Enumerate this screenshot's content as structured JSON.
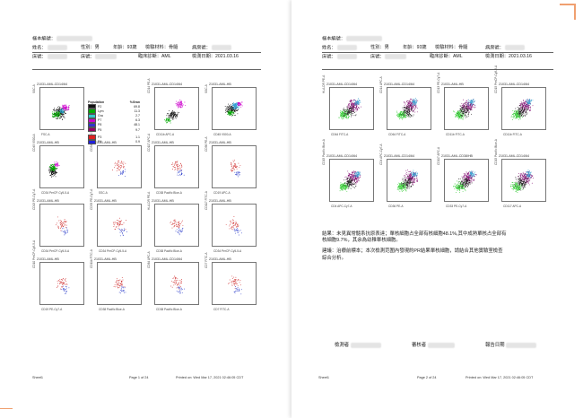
{
  "page1": {
    "header": {
      "sample_no_label": "樣本編號：",
      "name_label": "姓名：",
      "gender_label": "性別：男",
      "age_label": "年齡：93歲",
      "specimen_label": "檢驗材料：骨髓",
      "ward_label": "病房號：",
      "bed_label": "床號：",
      "clinic_label": "臨床診斷：AML",
      "test_date_label": "檢測日期：",
      "test_date": "2021.03.16"
    },
    "legend": {
      "col1": "Population",
      "col2": "%Gran",
      "items": [
        {
          "name": "P2",
          "value": "69.8",
          "color": "#111111"
        },
        {
          "name": "Lym",
          "value": "11.3",
          "color": "#00aa00"
        },
        {
          "name": "Gra",
          "value": "2.7",
          "color": "#33cccc"
        },
        {
          "name": "P7",
          "value": "6.3",
          "color": "#cc00cc"
        },
        {
          "name": "P8",
          "value": "48.1",
          "color": "#3333cc"
        },
        {
          "name": "P5",
          "value": "9.7",
          "color": "#990066"
        },
        {
          "name": "P3",
          "value": "1.1",
          "color": "#dd2222"
        },
        {
          "name": "P4",
          "value": "0.9",
          "color": "#2222dd"
        }
      ]
    },
    "panels": [
      {
        "title": "21031-AML-CD14/64",
        "x": "FSC-A",
        "y": "SSC-A"
      },
      {
        "title": "",
        "x": "",
        "y": ""
      },
      {
        "title": "21031-AML-CD14/64",
        "x": "CD11b APC-A",
        "y": "CD14 PE-A"
      },
      {
        "title": "21031-AML-HB",
        "x": "CD45 V500-A",
        "y": "SSC-A"
      },
      {
        "title": "21031-AML-HB",
        "x": "CD34 PerCP-Cy5-5-A",
        "y": "CD45 V500-A"
      },
      {
        "title": "21031-AML-HB",
        "x": "SSC-A",
        "y": "CD34 PerCP-Cy5-5-A"
      },
      {
        "title": "21031-AML-HB",
        "x": "CD38 Pacific Blue-A",
        "y": "CD117 APC-A"
      },
      {
        "title": "21031-AML-HB",
        "x": "CD19 APC-A",
        "y": "CD56 PE-A"
      },
      {
        "title": "21031-AML-HB",
        "x": "CD34 PerCP-Cy5-5-A",
        "y": "CD13 PE-Cy7-A"
      },
      {
        "title": "21031-AML-HB",
        "x": "CD34 PerCP-Cy5-5-A",
        "y": "CD33 PE-Cy7-A"
      },
      {
        "title": "21031-AML-HB",
        "x": "CD38 Pacific Blue-A",
        "y": "HLA-DR PE-A"
      },
      {
        "title": "21031-AML-HB",
        "x": "CD34 PerCP-Cy5-5-A",
        "y": "CD117 FITC-A"
      },
      {
        "title": "21031-AML-HB",
        "x": "CD19 PE-Cy7-A",
        "y": "CD10 PerCP-Cy5-5-A"
      },
      {
        "title": "21031-AML-HB",
        "x": "CD38 Pacific Blue-A",
        "y": "CD11b FITC-A"
      },
      {
        "title": "21031-AML-CD14/64",
        "x": "CD38 Pacific Blue-A",
        "y": "CD64 APC-A"
      },
      {
        "title": "21031-AML-HB",
        "x": "CD7 FITC-A",
        "y": "CD7 FITC-A"
      }
    ],
    "footer": {
      "left": "Sheet1",
      "center": "Page 1 of 24",
      "right": "Printed on: Wed Mar 17, 2021 02:46:05 CDT"
    }
  },
  "page2": {
    "header": {
      "sample_no_label": "樣本編號：",
      "name_label": "姓名：",
      "gender_label": "性別：男",
      "age_label": "年齡：93歲",
      "specimen_label": "檢驗材料：骨髓",
      "ward_label": "病房號：",
      "bed_label": "床號：",
      "clinic_label": "臨床診斷：AML",
      "test_date_label": "檢測日期：",
      "test_date": "2021.03.16"
    },
    "panels": [
      {
        "title": "21031-AML-CD14/64",
        "x": "CD64 FITC-A",
        "y": "HLA-DR PE-A"
      },
      {
        "title": "21031-AML-CD14/64",
        "x": "CD64 FITC-A",
        "y": "CD14 APC-A"
      },
      {
        "title": "21031-AML-HB",
        "x": "CD11b FITC-A",
        "y": "CD13 PE-Cy7-A"
      },
      {
        "title": "21031-AML-CD14/64",
        "x": "CD11b FITC-A",
        "y": "CD15 PerCP-Cy5-5-A"
      },
      {
        "title": "21031-AML-CD14/64",
        "x": "CD4 APC-Cy7-A",
        "y": "CD15 Pacific Blue-A"
      },
      {
        "title": "21031-AML-CD14/64",
        "x": "CD36 PE-A",
        "y": "CD4 APC-Cy7-A"
      },
      {
        "title": "21031-AML-CD38/HB",
        "x": "CD33 PE-Cy7-A",
        "y": "CD117 APC-A"
      },
      {
        "title": "21031-AML-CD14/64",
        "x": "CD117 APC-A",
        "y": "CD15 Pacific Blue-A"
      }
    ],
    "conclusion": {
      "line1": "結果：未見異常髓系抗原表達；單核細胞占全部有核細胞48.1%,其中成熟單核占全部有",
      "line2": "核細胞9.7%，其余為幼稚單核細胞。",
      "note1": "建議：治療前標本；本次檢測范圍內發現約PR結果單核細胞，請結合其他實驗室檢查",
      "note2": "綜合分析。"
    },
    "sign": {
      "tester_label": "檢測者",
      "reviewer_label": "審核者",
      "report_date_label": "報告日期"
    },
    "footer": {
      "left": "Sheet1",
      "center": "Page 2 of 24",
      "right": "Printed on: Wed Mar 17, 2021 02:46:05 CDT"
    }
  }
}
